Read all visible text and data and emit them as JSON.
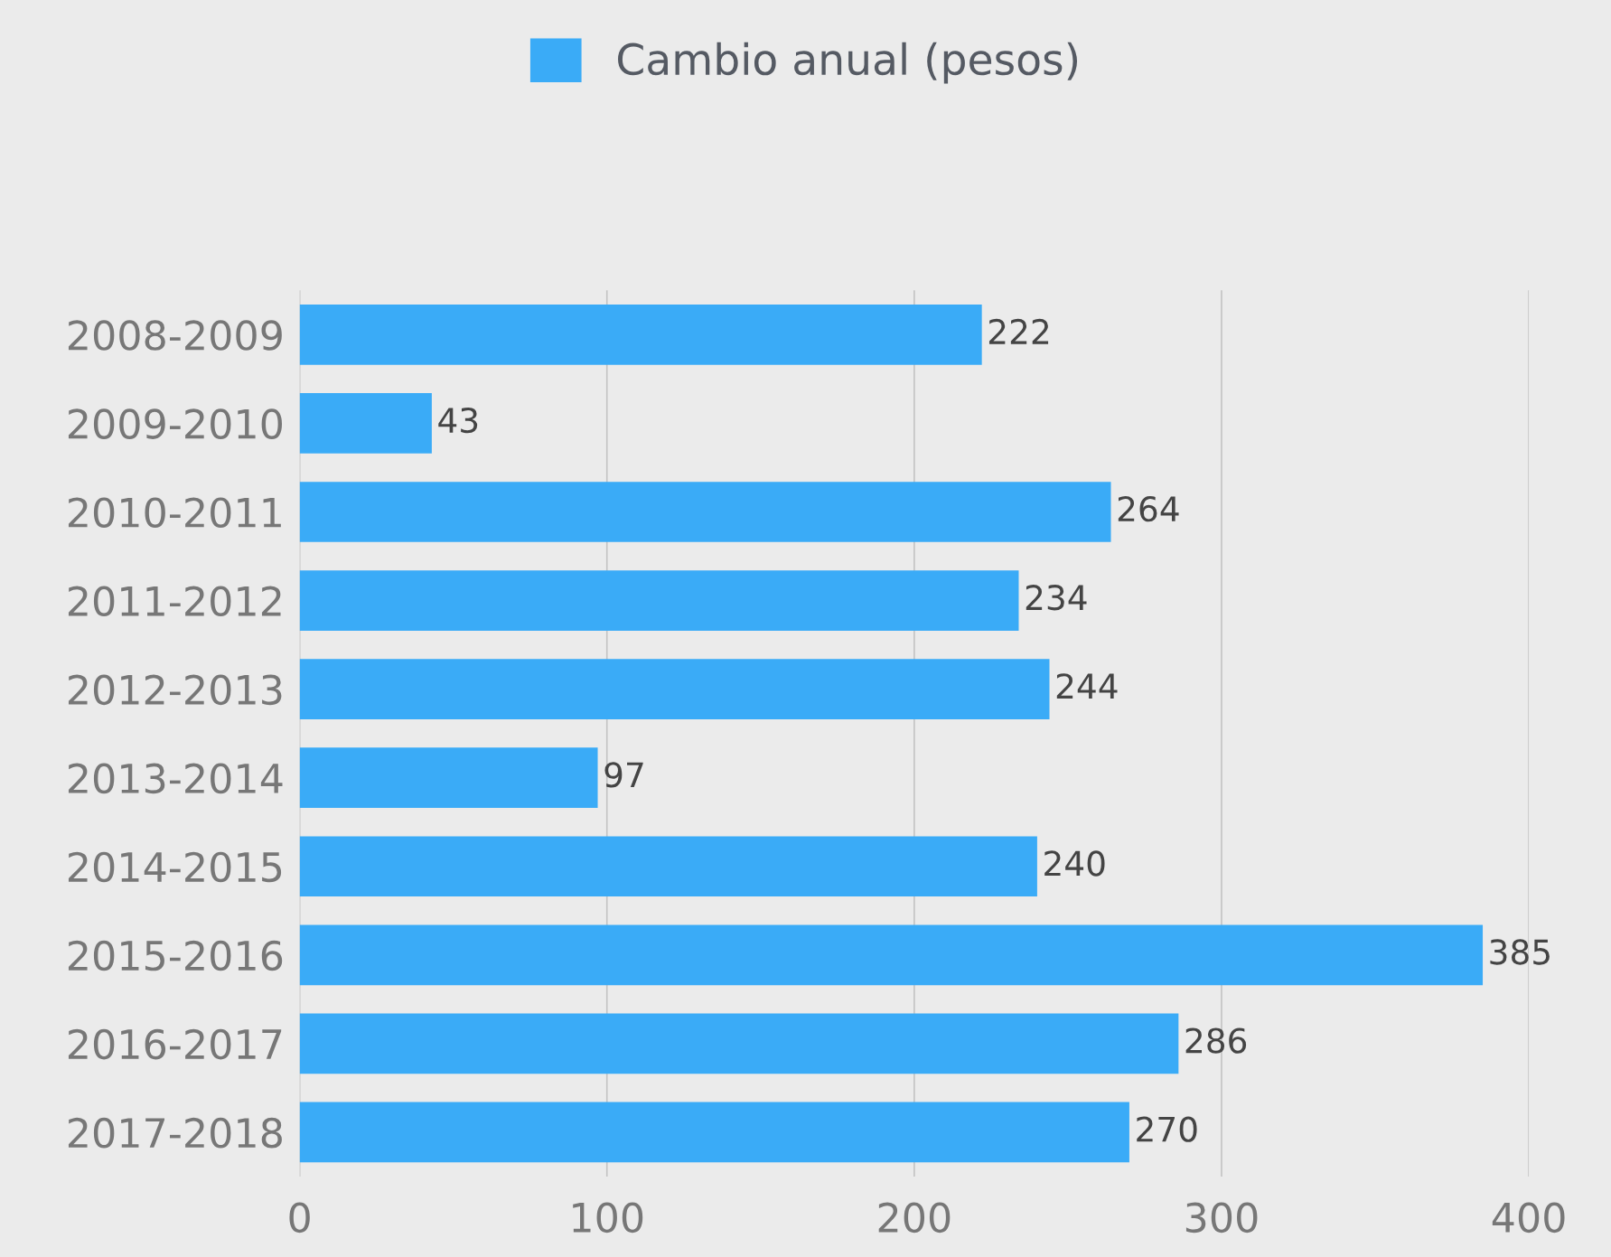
{
  "chart_data": {
    "type": "bar",
    "orientation": "horizontal",
    "categories": [
      "2008-2009",
      "2009-2010",
      "2010-2011",
      "2011-2012",
      "2012-2013",
      "2013-2014",
      "2014-2015",
      "2015-2016",
      "2016-2017",
      "2017-2018"
    ],
    "series": [
      {
        "name": "Cambio anual (pesos)",
        "color": "#3aabf7",
        "values": [
          222,
          43,
          264,
          234,
          244,
          97,
          240,
          385,
          286,
          270
        ]
      }
    ],
    "xlim": [
      0,
      400
    ],
    "xticks": [
      0,
      100,
      200,
      300,
      400
    ],
    "grid": "x",
    "legend": "top",
    "data_labels": true
  }
}
